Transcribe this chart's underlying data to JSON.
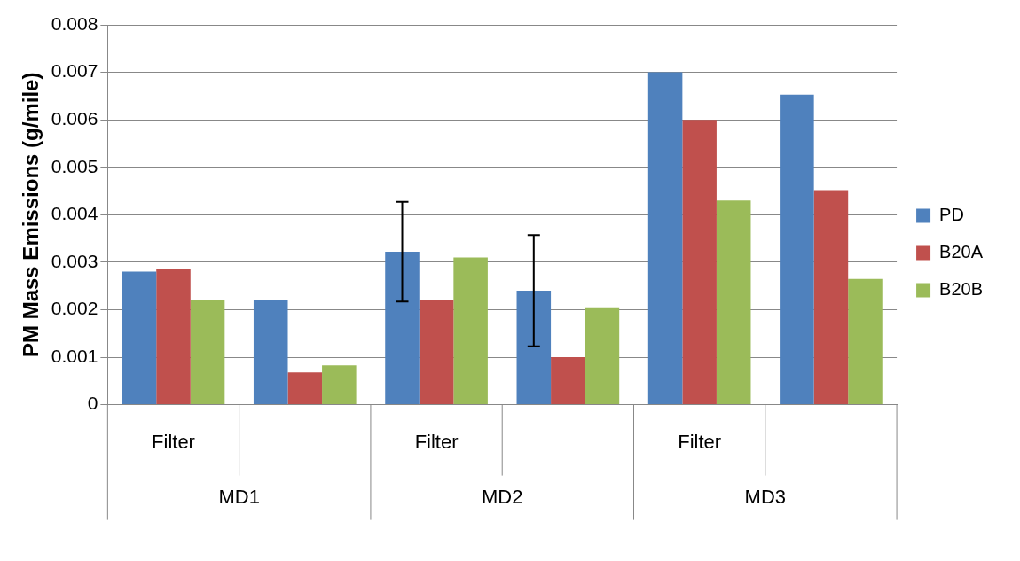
{
  "chart_data": {
    "type": "bar",
    "ylabel": "PM Mass Emissions (g/mile)",
    "categories": [
      "Filter",
      null,
      "Filter",
      null,
      "Filter",
      null
    ],
    "annotations": [
      "MD1",
      "MD2",
      "MD3"
    ],
    "series": [
      {
        "name": "PD",
        "color": "#4f81bd",
        "values": [
          0.0028,
          0.0022,
          0.00322,
          0.0024,
          0.007,
          0.00653
        ],
        "errors": [
          null,
          null,
          [
            0.00217,
            0.00427
          ],
          [
            0.00123,
            0.00357
          ],
          null,
          null
        ]
      },
      {
        "name": "B20A",
        "color": "#c0504d",
        "values": [
          0.00285,
          0.00068,
          0.0022,
          0.001,
          0.006,
          0.00452
        ]
      },
      {
        "name": "B20B",
        "color": "#9bbb59",
        "values": [
          0.0022,
          0.00083,
          0.0031,
          0.00205,
          0.0043,
          0.00265
        ]
      }
    ],
    "ylim": [
      0,
      0.008
    ],
    "yticks": [
      0,
      0.001,
      0.002,
      0.003,
      0.004,
      0.005,
      0.006,
      0.007,
      0.008
    ],
    "grid": "y",
    "legend": "right"
  }
}
